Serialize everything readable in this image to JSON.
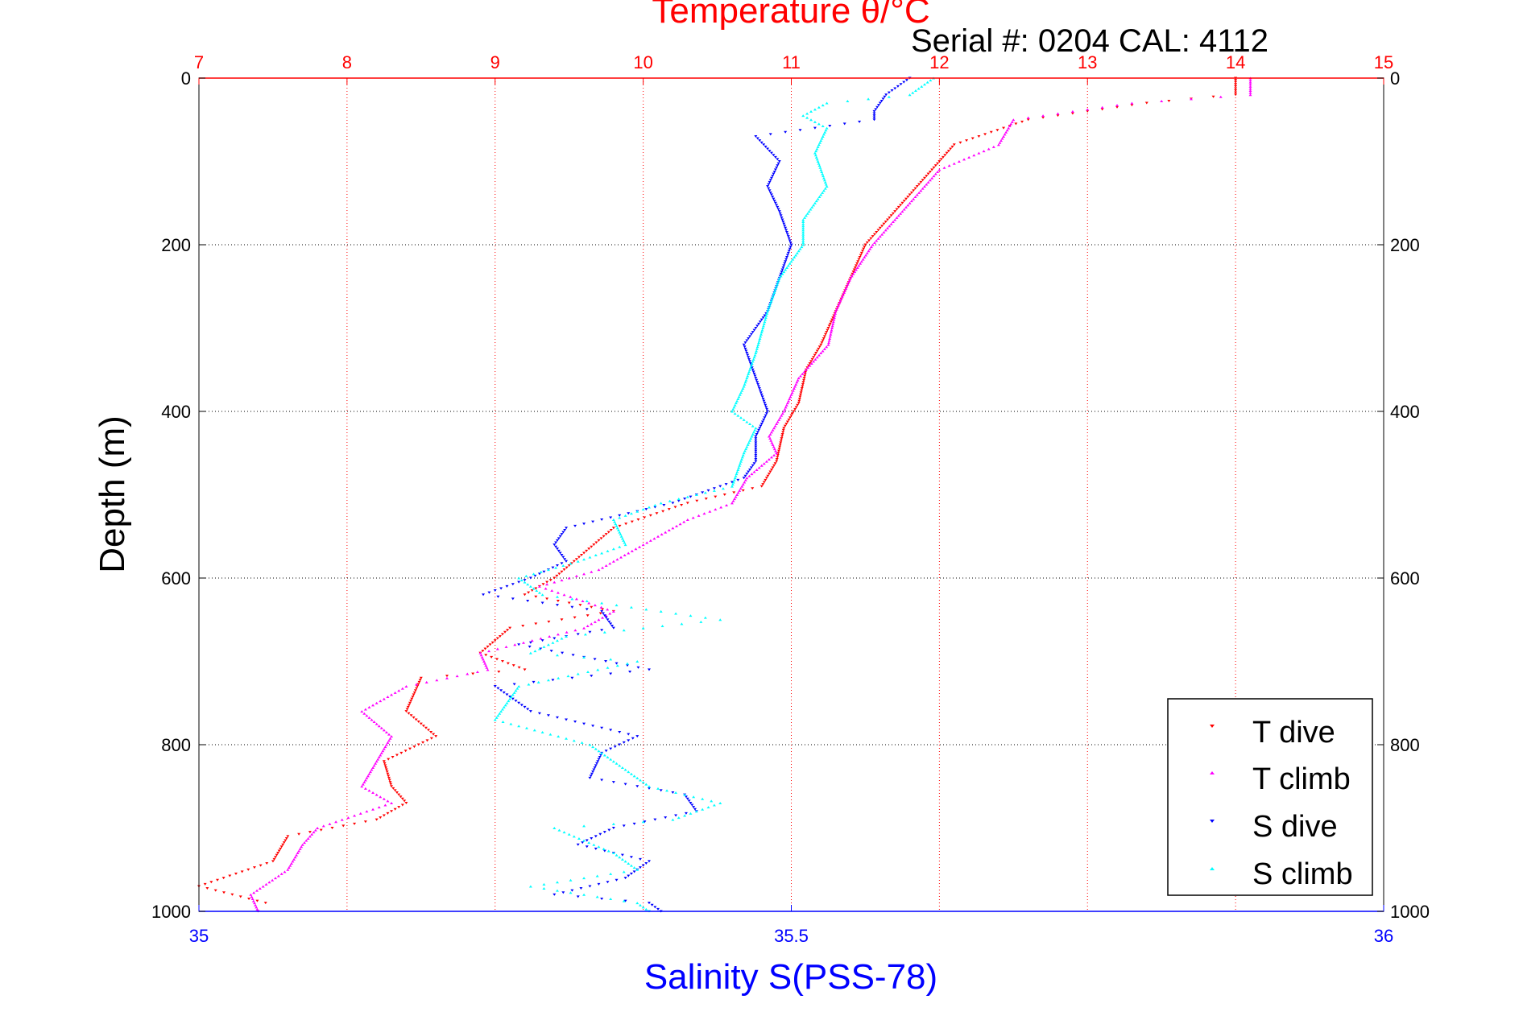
{
  "chart_data": {
    "type": "scatter",
    "title": "Temperature θ/°C",
    "subtitle": "Serial #: 0204  CAL: 4112",
    "ylabel": "Depth (m)",
    "xlabel_bottom": "Salinity S(PSS-78)",
    "top_axis": {
      "ticks": [
        "7",
        "8",
        "9",
        "10",
        "11",
        "12",
        "13",
        "14",
        "15"
      ],
      "range": [
        7,
        15
      ],
      "color": "#ff0000"
    },
    "bottom_axis": {
      "ticks": [
        "35",
        "35.5",
        "36"
      ],
      "range": [
        35,
        36
      ],
      "color": "#0000ff"
    },
    "y_axis": {
      "ticks": [
        "0",
        "200",
        "400",
        "600",
        "800",
        "1000"
      ],
      "range": [
        0,
        1000
      ],
      "reversed": true
    },
    "grid": true,
    "legend": {
      "position": "bottom-right",
      "entries": [
        "T dive",
        "T climb",
        "S dive",
        "S climb"
      ]
    },
    "colors": {
      "t_dive": "#ff0000",
      "t_climb": "#ff00ff",
      "s_dive": "#0000ff",
      "s_climb": "#00ffff",
      "grid_red": "#ff0000",
      "grid_black": "#000000"
    },
    "series": [
      {
        "name": "T dive",
        "axis": "temperature",
        "color": "#ff0000",
        "points": [
          [
            14.0,
            0
          ],
          [
            14.0,
            20
          ],
          [
            13.4,
            30
          ],
          [
            12.6,
            50
          ],
          [
            12.1,
            80
          ],
          [
            11.95,
            110
          ],
          [
            11.8,
            140
          ],
          [
            11.65,
            170
          ],
          [
            11.5,
            200
          ],
          [
            11.4,
            240
          ],
          [
            11.3,
            280
          ],
          [
            11.2,
            320
          ],
          [
            11.1,
            350
          ],
          [
            11.05,
            390
          ],
          [
            10.95,
            420
          ],
          [
            10.9,
            460
          ],
          [
            10.8,
            490
          ],
          [
            10.3,
            510
          ],
          [
            9.8,
            540
          ],
          [
            9.6,
            570
          ],
          [
            9.4,
            600
          ],
          [
            9.2,
            620
          ],
          [
            9.8,
            640
          ],
          [
            9.1,
            660
          ],
          [
            8.9,
            690
          ],
          [
            9.2,
            710
          ],
          [
            8.5,
            720
          ],
          [
            8.4,
            760
          ],
          [
            8.6,
            790
          ],
          [
            8.25,
            820
          ],
          [
            8.3,
            850
          ],
          [
            8.4,
            870
          ],
          [
            8.2,
            890
          ],
          [
            7.6,
            910
          ],
          [
            7.5,
            940
          ],
          [
            7.0,
            970
          ],
          [
            7.45,
            990
          ]
        ]
      },
      {
        "name": "T climb",
        "axis": "temperature",
        "color": "#ff00ff",
        "points": [
          [
            14.1,
            0
          ],
          [
            14.1,
            20
          ],
          [
            13.3,
            30
          ],
          [
            12.5,
            50
          ],
          [
            12.4,
            80
          ],
          [
            12.0,
            110
          ],
          [
            11.85,
            140
          ],
          [
            11.7,
            170
          ],
          [
            11.55,
            200
          ],
          [
            11.4,
            240
          ],
          [
            11.3,
            280
          ],
          [
            11.25,
            320
          ],
          [
            11.05,
            360
          ],
          [
            10.95,
            400
          ],
          [
            10.85,
            430
          ],
          [
            10.9,
            450
          ],
          [
            10.7,
            480
          ],
          [
            10.6,
            510
          ],
          [
            10.3,
            530
          ],
          [
            10.0,
            560
          ],
          [
            9.7,
            590
          ],
          [
            9.3,
            610
          ],
          [
            9.8,
            640
          ],
          [
            9.6,
            660
          ],
          [
            8.9,
            690
          ],
          [
            8.95,
            710
          ],
          [
            8.4,
            730
          ],
          [
            8.1,
            760
          ],
          [
            8.3,
            790
          ],
          [
            8.2,
            820
          ],
          [
            8.1,
            850
          ],
          [
            8.3,
            870
          ],
          [
            7.8,
            900
          ],
          [
            7.7,
            920
          ],
          [
            7.6,
            950
          ],
          [
            7.35,
            980
          ],
          [
            7.4,
            1000
          ]
        ]
      },
      {
        "name": "S dive",
        "axis": "salinity",
        "color": "#0000ff",
        "points": [
          [
            35.6,
            0
          ],
          [
            35.58,
            20
          ],
          [
            35.57,
            40
          ],
          [
            35.57,
            50
          ],
          [
            35.47,
            70
          ],
          [
            35.49,
            100
          ],
          [
            35.48,
            130
          ],
          [
            35.49,
            160
          ],
          [
            35.5,
            200
          ],
          [
            35.49,
            240
          ],
          [
            35.48,
            280
          ],
          [
            35.46,
            320
          ],
          [
            35.47,
            360
          ],
          [
            35.48,
            400
          ],
          [
            35.47,
            430
          ],
          [
            35.47,
            460
          ],
          [
            35.46,
            480
          ],
          [
            35.4,
            510
          ],
          [
            35.31,
            540
          ],
          [
            35.3,
            560
          ],
          [
            35.31,
            580
          ],
          [
            35.28,
            600
          ],
          [
            35.24,
            620
          ],
          [
            35.34,
            640
          ],
          [
            35.35,
            660
          ],
          [
            35.27,
            680
          ],
          [
            35.38,
            710
          ],
          [
            35.25,
            730
          ],
          [
            35.28,
            760
          ],
          [
            35.37,
            790
          ],
          [
            35.34,
            810
          ],
          [
            35.33,
            840
          ],
          [
            35.41,
            860
          ],
          [
            35.42,
            880
          ],
          [
            35.35,
            900
          ],
          [
            35.32,
            920
          ],
          [
            35.38,
            940
          ],
          [
            35.36,
            960
          ],
          [
            35.3,
            980
          ],
          [
            35.38,
            990
          ],
          [
            35.39,
            1000
          ]
        ]
      },
      {
        "name": "S climb",
        "axis": "salinity",
        "color": "#00ffff",
        "points": [
          [
            35.62,
            0
          ],
          [
            35.6,
            20
          ],
          [
            35.53,
            30
          ],
          [
            35.51,
            45
          ],
          [
            35.53,
            60
          ],
          [
            35.52,
            90
          ],
          [
            35.53,
            130
          ],
          [
            35.51,
            170
          ],
          [
            35.51,
            200
          ],
          [
            35.49,
            240
          ],
          [
            35.48,
            280
          ],
          [
            35.47,
            330
          ],
          [
            35.46,
            370
          ],
          [
            35.45,
            400
          ],
          [
            35.47,
            420
          ],
          [
            35.46,
            450
          ],
          [
            35.45,
            490
          ],
          [
            35.39,
            510
          ],
          [
            35.35,
            530
          ],
          [
            35.36,
            560
          ],
          [
            35.32,
            580
          ],
          [
            35.27,
            600
          ],
          [
            35.29,
            620
          ],
          [
            35.44,
            650
          ],
          [
            35.31,
            670
          ],
          [
            35.28,
            690
          ],
          [
            35.37,
            700
          ],
          [
            35.27,
            730
          ],
          [
            35.25,
            770
          ],
          [
            35.33,
            800
          ],
          [
            35.36,
            830
          ],
          [
            35.38,
            850
          ],
          [
            35.44,
            870
          ],
          [
            35.4,
            890
          ],
          [
            35.3,
            900
          ],
          [
            35.35,
            930
          ],
          [
            35.37,
            950
          ],
          [
            35.28,
            970
          ],
          [
            35.37,
            990
          ],
          [
            35.38,
            1000
          ]
        ]
      }
    ]
  }
}
